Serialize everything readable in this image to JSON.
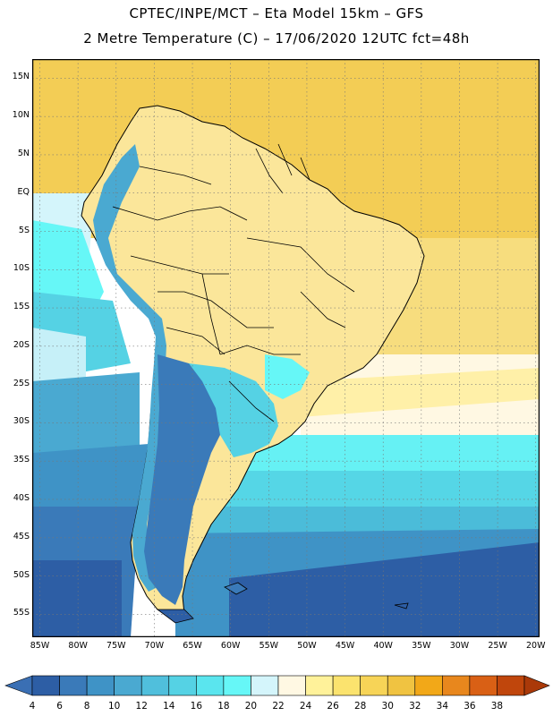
{
  "title": {
    "line1": "CPTEC/INPE/MCT –  Eta Model 15km – GFS",
    "line2": "2 Metre Temperature (C) – 17/06/2020 12UTC fct=48h"
  },
  "map": {
    "lat_labels": [
      "15N",
      "10N",
      "5N",
      "EQ",
      "5S",
      "10S",
      "15S",
      "20S",
      "25S",
      "30S",
      "35S",
      "40S",
      "45S",
      "50S",
      "55S"
    ],
    "lon_labels": [
      "85W",
      "80W",
      "75W",
      "70W",
      "65W",
      "60W",
      "55W",
      "50W",
      "45W",
      "40W",
      "35W",
      "30W",
      "25W",
      "20W"
    ],
    "lat_range": [
      17.5,
      -58
    ],
    "lon_range": [
      -86,
      -19.5
    ],
    "grid": true
  },
  "colorbar": {
    "labels": [
      "4",
      "6",
      "8",
      "10",
      "12",
      "14",
      "16",
      "18",
      "20",
      "22",
      "24",
      "26",
      "28",
      "30",
      "32",
      "34",
      "36",
      "38"
    ],
    "colors": [
      "#3a6fb4",
      "#2d5ea5",
      "#3a7ab9",
      "#3f93c6",
      "#4aa9d1",
      "#50bfdc",
      "#55d2e4",
      "#5ae5ee",
      "#66f7f7",
      "#d4f5fb",
      "#fff8e3",
      "#fff29a",
      "#fbe36e",
      "#f7d457",
      "#f0c341",
      "#f2a818",
      "#e8871d",
      "#d96015",
      "#c0460c",
      "#aa3909"
    ]
  },
  "palette": {
    "ocean_north": "#f3ce54",
    "land_warm": "#fde593",
    "ocean_cold": "#2d5ea5",
    "border": "#000000"
  }
}
